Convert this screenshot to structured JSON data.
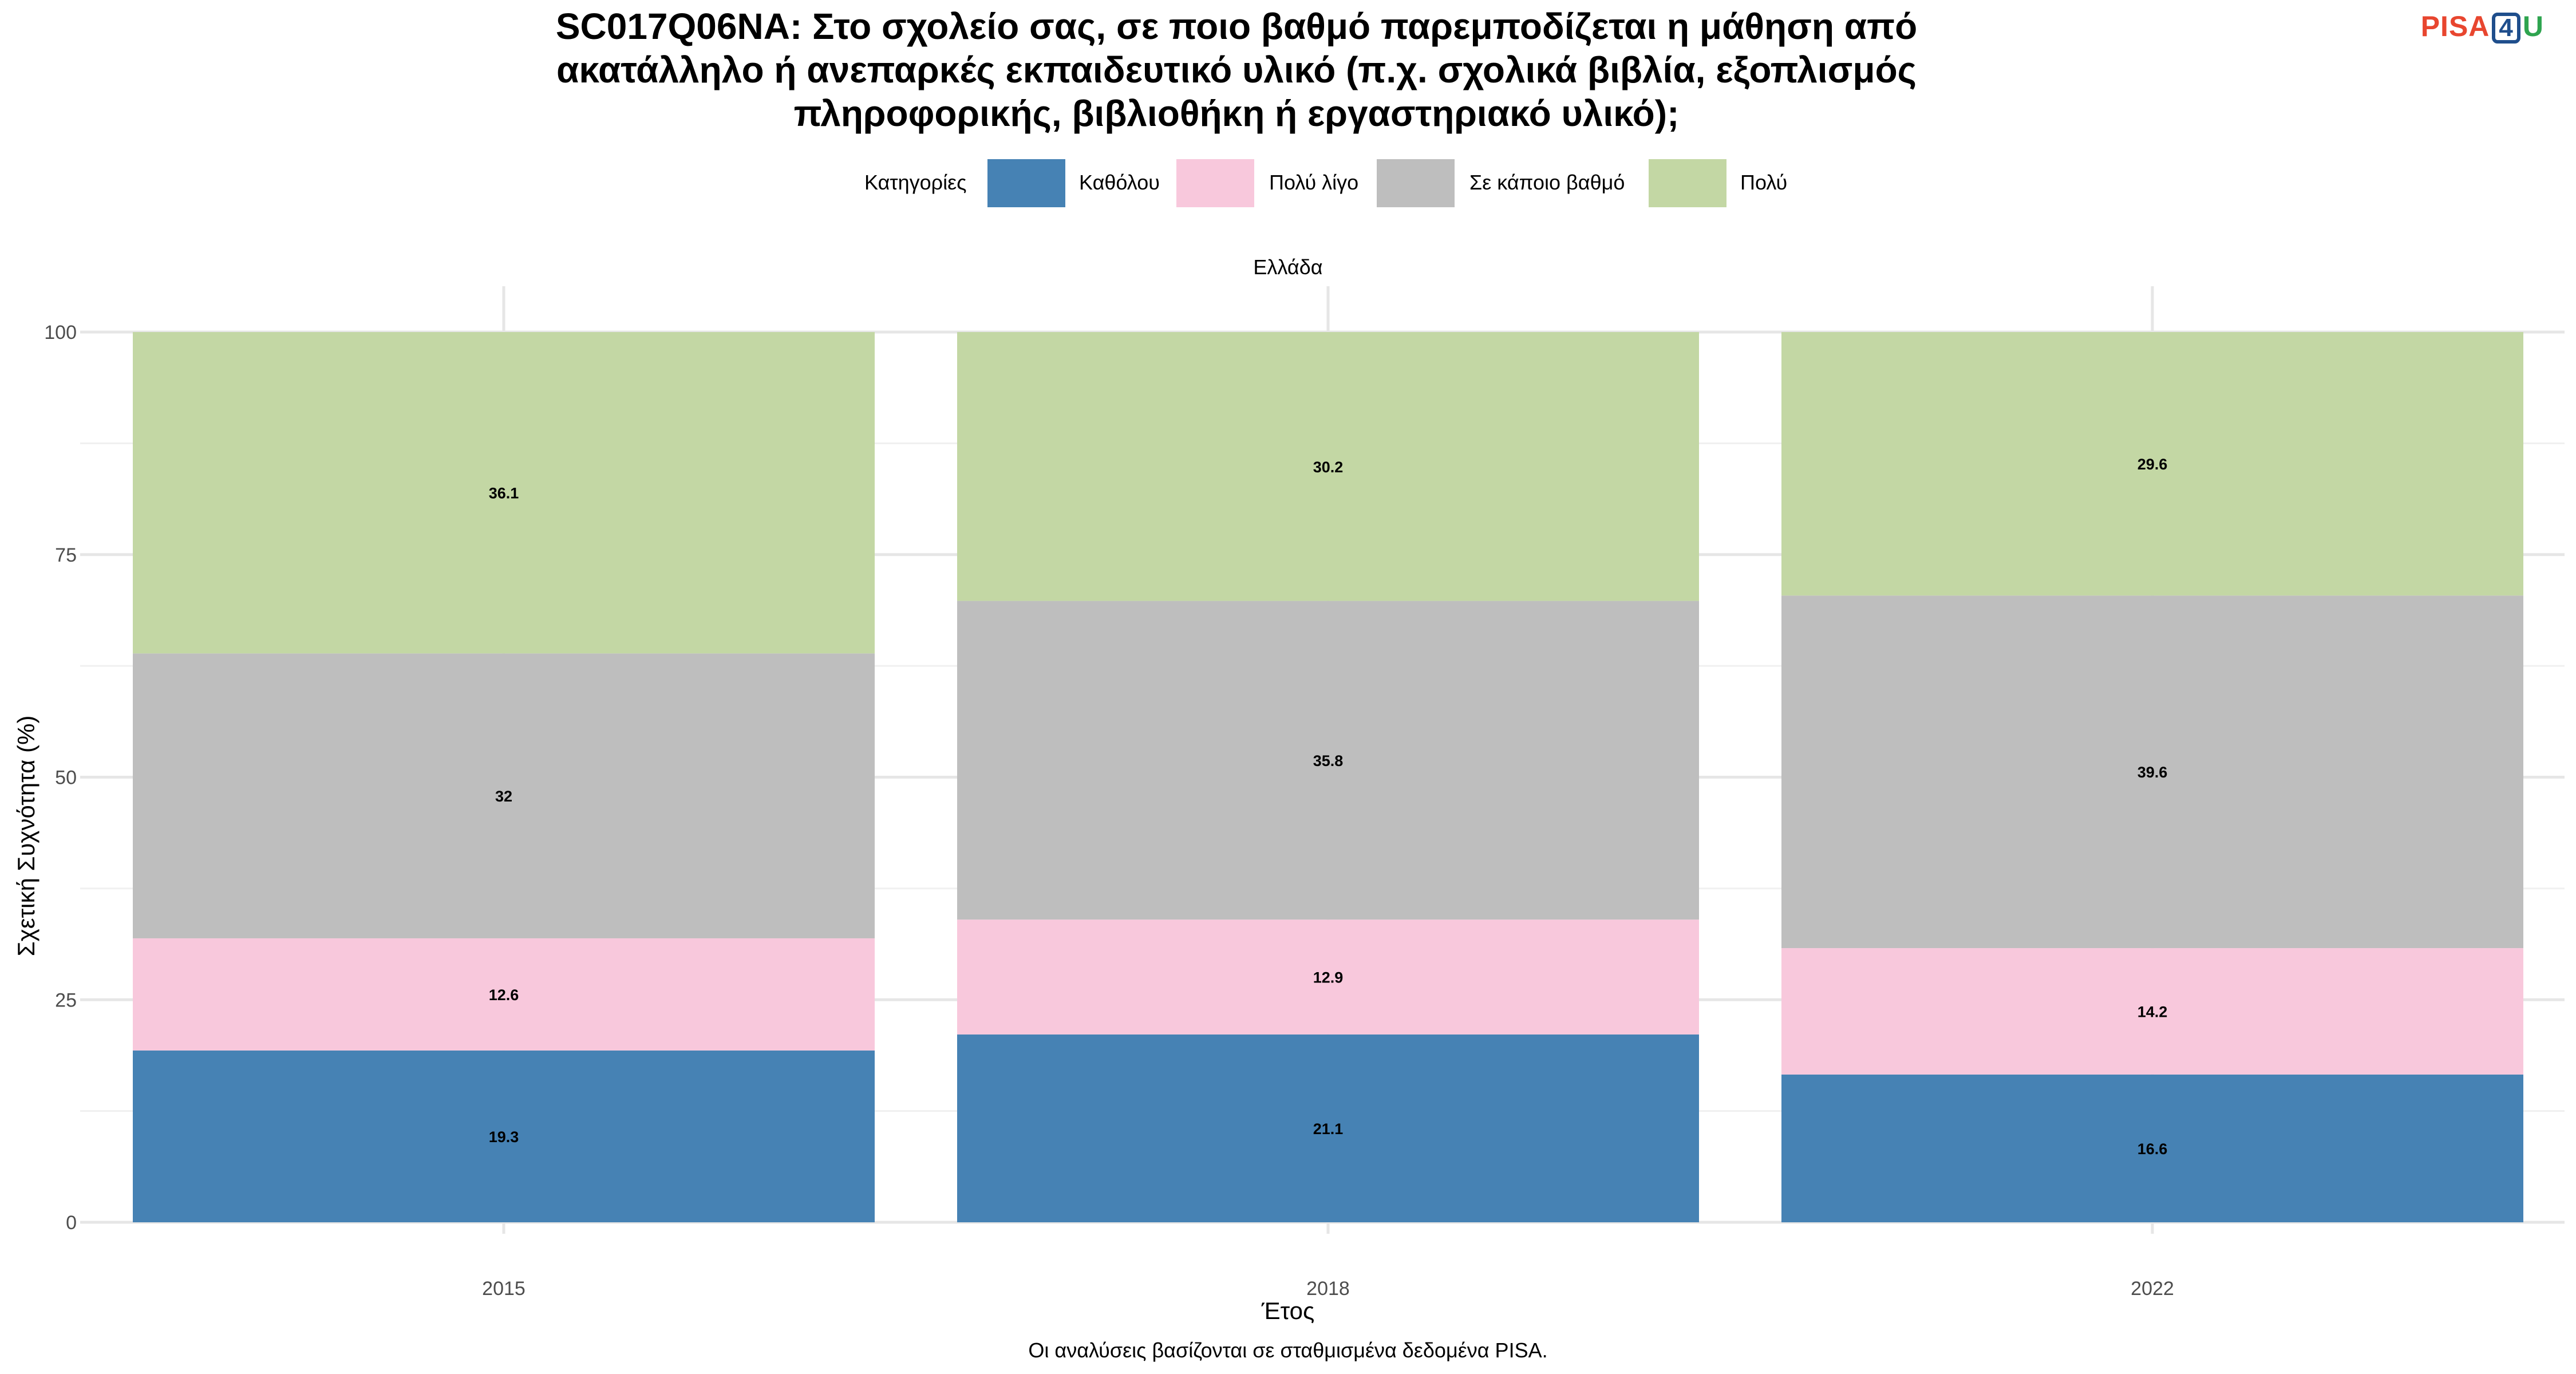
{
  "chart_data": {
    "type": "bar",
    "stacked": true,
    "title_lines": [
      "SC017Q06NA: Στο σχολείο σας, σε ποιο βαθμό παρεμποδίζεται η μάθηση από",
      "ακατάλληλο ή ανεπαρκές εκπαιδευτικό υλικό (π.χ. σχολικά βιβλία, εξοπλισμός",
      "πληροφορικής, βιβλιοθήκη ή εργαστηριακό υλικό);"
    ],
    "panel_label": "Ελλάδα",
    "xlabel": "Έτος",
    "ylabel": "Σχετική Συχνότητα (%)",
    "ylim": [
      0,
      100
    ],
    "yticks": [
      0,
      25,
      50,
      75,
      100
    ],
    "grid": true,
    "legend_title": "Κατηγορίες",
    "legend_position": "top",
    "categories": [
      "2015",
      "2018",
      "2022"
    ],
    "series": [
      {
        "name": "Καθόλου",
        "color": "#4682b4",
        "values": [
          19.3,
          21.1,
          16.6
        ]
      },
      {
        "name": "Πολύ λίγο",
        "color": "#f8c8dc",
        "values": [
          12.6,
          12.9,
          14.2
        ]
      },
      {
        "name": "Σε κάποιο βαθμό",
        "color": "#bebebe",
        "values": [
          32,
          35.8,
          39.6
        ]
      },
      {
        "name": "Πολύ",
        "color": "#c3d7a4",
        "values": [
          36.1,
          30.2,
          29.6
        ]
      }
    ],
    "caption": "Οι αναλύσεις βασίζονται σε σταθμισμένα δεδομένα PISA."
  },
  "logo": {
    "pisa": "PISA",
    "four": "4",
    "u": "U"
  }
}
